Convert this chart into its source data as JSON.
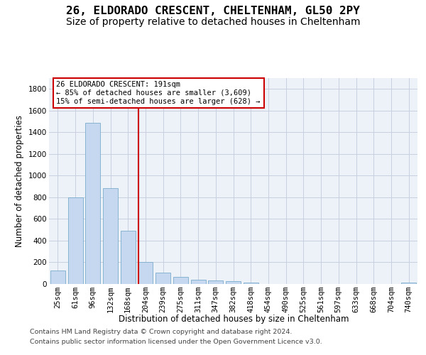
{
  "title": "26, ELDORADO CRESCENT, CHELTENHAM, GL50 2PY",
  "subtitle": "Size of property relative to detached houses in Cheltenham",
  "xlabel": "Distribution of detached houses by size in Cheltenham",
  "ylabel": "Number of detached properties",
  "footer_line1": "Contains HM Land Registry data © Crown copyright and database right 2024.",
  "footer_line2": "Contains public sector information licensed under the Open Government Licence v3.0.",
  "categories": [
    "25sqm",
    "61sqm",
    "96sqm",
    "132sqm",
    "168sqm",
    "204sqm",
    "239sqm",
    "275sqm",
    "311sqm",
    "347sqm",
    "382sqm",
    "418sqm",
    "454sqm",
    "490sqm",
    "525sqm",
    "561sqm",
    "597sqm",
    "633sqm",
    "668sqm",
    "704sqm",
    "740sqm"
  ],
  "values": [
    125,
    800,
    1490,
    885,
    490,
    205,
    105,
    65,
    40,
    32,
    25,
    15,
    0,
    0,
    0,
    0,
    0,
    0,
    0,
    0,
    15
  ],
  "bar_color": "#c5d8f0",
  "bar_edge_color": "#7aabcc",
  "vline_x": 4.58,
  "vline_color": "#cc0000",
  "annotation_line1": "26 ELDORADO CRESCENT: 191sqm",
  "annotation_line2": "← 85% of detached houses are smaller (3,609)",
  "annotation_line3": "15% of semi-detached houses are larger (628) →",
  "annotation_box_color": "#ffffff",
  "annotation_box_edge_color": "#cc0000",
  "ylim": [
    0,
    1900
  ],
  "yticks": [
    0,
    200,
    400,
    600,
    800,
    1000,
    1200,
    1400,
    1600,
    1800
  ],
  "grid_color": "#c8cfe0",
  "bg_color": "#edf1f8",
  "title_fontsize": 11.5,
  "subtitle_fontsize": 10,
  "axis_label_fontsize": 8.5,
  "tick_fontsize": 7.5,
  "annot_fontsize": 7.5,
  "footer_fontsize": 6.8
}
